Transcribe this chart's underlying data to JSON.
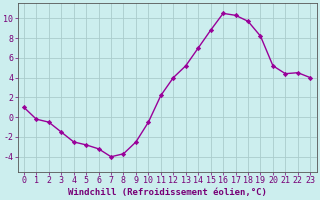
{
  "x": [
    0,
    1,
    2,
    3,
    4,
    5,
    6,
    7,
    8,
    9,
    10,
    11,
    12,
    13,
    14,
    15,
    16,
    17,
    18,
    19,
    20,
    21,
    22,
    23
  ],
  "y": [
    1,
    -0.2,
    -0.5,
    -1.5,
    -2.5,
    -2.8,
    -3.2,
    -4.0,
    -3.7,
    -2.5,
    -0.5,
    2.2,
    4.0,
    5.2,
    7.0,
    8.8,
    10.5,
    10.3,
    9.7,
    8.2,
    5.2,
    4.4,
    4.5,
    4.0
  ],
  "line_color": "#990099",
  "marker": "D",
  "markersize": 2.2,
  "linewidth": 1.0,
  "bg_color": "#cceeee",
  "grid_color": "#aacccc",
  "xlabel": "Windchill (Refroidissement éolien,°C)",
  "xlabel_fontsize": 6.5,
  "tick_fontsize": 6.0,
  "ylim": [
    -5.5,
    11.5
  ],
  "xlim": [
    -0.5,
    23.5
  ],
  "yticks": [
    -4,
    -2,
    0,
    2,
    4,
    6,
    8,
    10
  ],
  "xtick_labels": [
    "0",
    "1",
    "2",
    "3",
    "4",
    "5",
    "6",
    "7",
    "8",
    "9",
    "10",
    "11",
    "12",
    "13",
    "14",
    "15",
    "16",
    "17",
    "18",
    "19",
    "20",
    "21",
    "22",
    "23"
  ],
  "xticks": [
    0,
    1,
    2,
    3,
    4,
    5,
    6,
    7,
    8,
    9,
    10,
    11,
    12,
    13,
    14,
    15,
    16,
    17,
    18,
    19,
    20,
    21,
    22,
    23
  ],
  "text_color": "#770077",
  "spine_color": "#555555"
}
